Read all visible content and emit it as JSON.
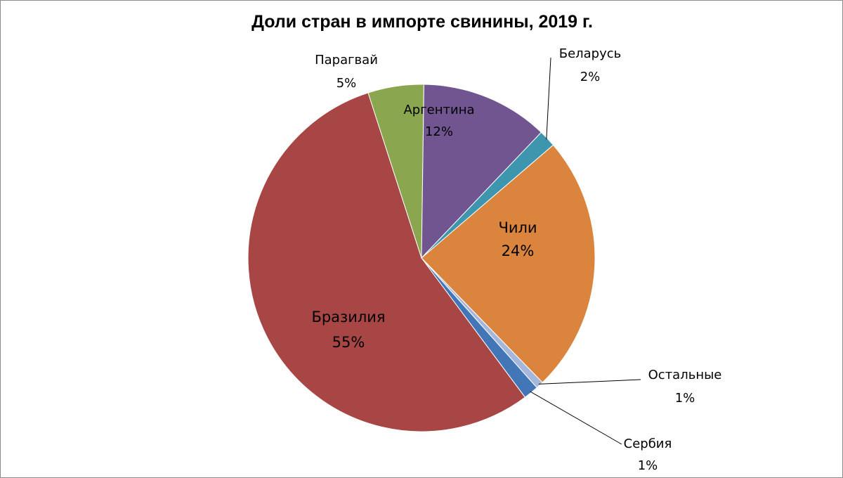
{
  "chart_data": {
    "type": "pie",
    "title": "Доли стран в импорте свинины, 2019 г.",
    "slices": [
      {
        "name": "Чили",
        "label": "24%",
        "value": 24.0,
        "color": "#db843d"
      },
      {
        "name": "Остальные",
        "label": "1%",
        "value": 0.7,
        "color": "#a5b7da"
      },
      {
        "name": "Сербия",
        "label": "1%",
        "value": 1.4,
        "color": "#4376b7"
      },
      {
        "name": "Бразилия",
        "label": "55%",
        "value": 55.2,
        "color": "#a84645"
      },
      {
        "name": "Парагвай",
        "label": "5%",
        "value": 5.2,
        "color": "#8aa64f"
      },
      {
        "name": "Аргентина",
        "label": "12%",
        "value": 11.9,
        "color": "#705591"
      },
      {
        "name": "Беларусь",
        "label": "2%",
        "value": 1.6,
        "color": "#3d96ae"
      }
    ]
  }
}
